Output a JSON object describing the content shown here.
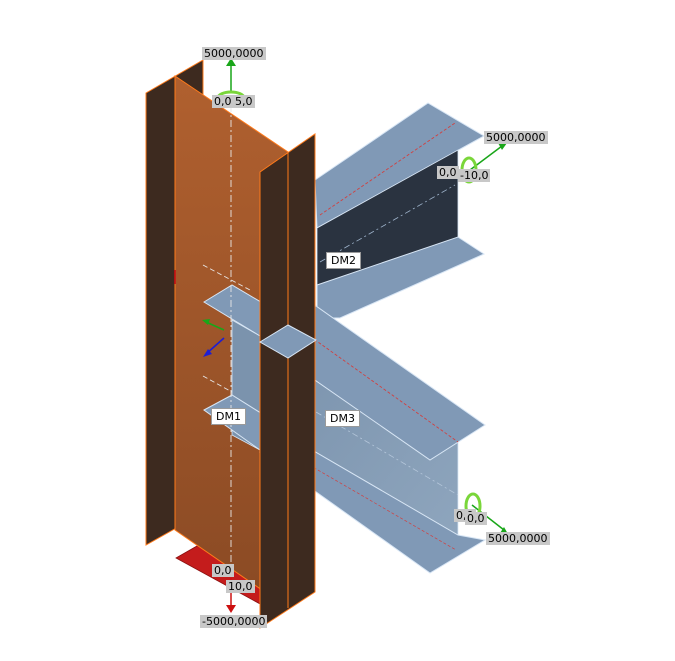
{
  "members": [
    {
      "id": "DM1",
      "label": "DM1"
    },
    {
      "id": "DM2",
      "label": "DM2"
    },
    {
      "id": "DM3",
      "label": "DM3"
    }
  ],
  "loads": {
    "top": {
      "force": "5000,0000",
      "values": [
        "0,0",
        "5,0"
      ]
    },
    "right_upper": {
      "force": "5000,0000",
      "values": [
        "0,0",
        "-10,0"
      ]
    },
    "right_lower": {
      "force": "5000,0000",
      "values": [
        "0,0",
        "0,0"
      ]
    },
    "bottom": {
      "force": "-5000,0000",
      "values": [
        "0,0",
        "10,0"
      ]
    }
  },
  "colors": {
    "column_face": "#a6582c",
    "column_dark": "#3d2a1f",
    "column_edge": "#ff7a1a",
    "beam_flange": "#8099b6",
    "beam_web": "#6f86a0",
    "beam_dark": "#2a3340",
    "beam_edge": "#d8e6f5",
    "support": "#c41c1c",
    "arrow_green": "#19a619",
    "arrow_blue": "#1e1ed2",
    "arrow_red": "#cc1010",
    "moment_green": "#7ad63a",
    "label_bg": "#c8c8c8"
  }
}
